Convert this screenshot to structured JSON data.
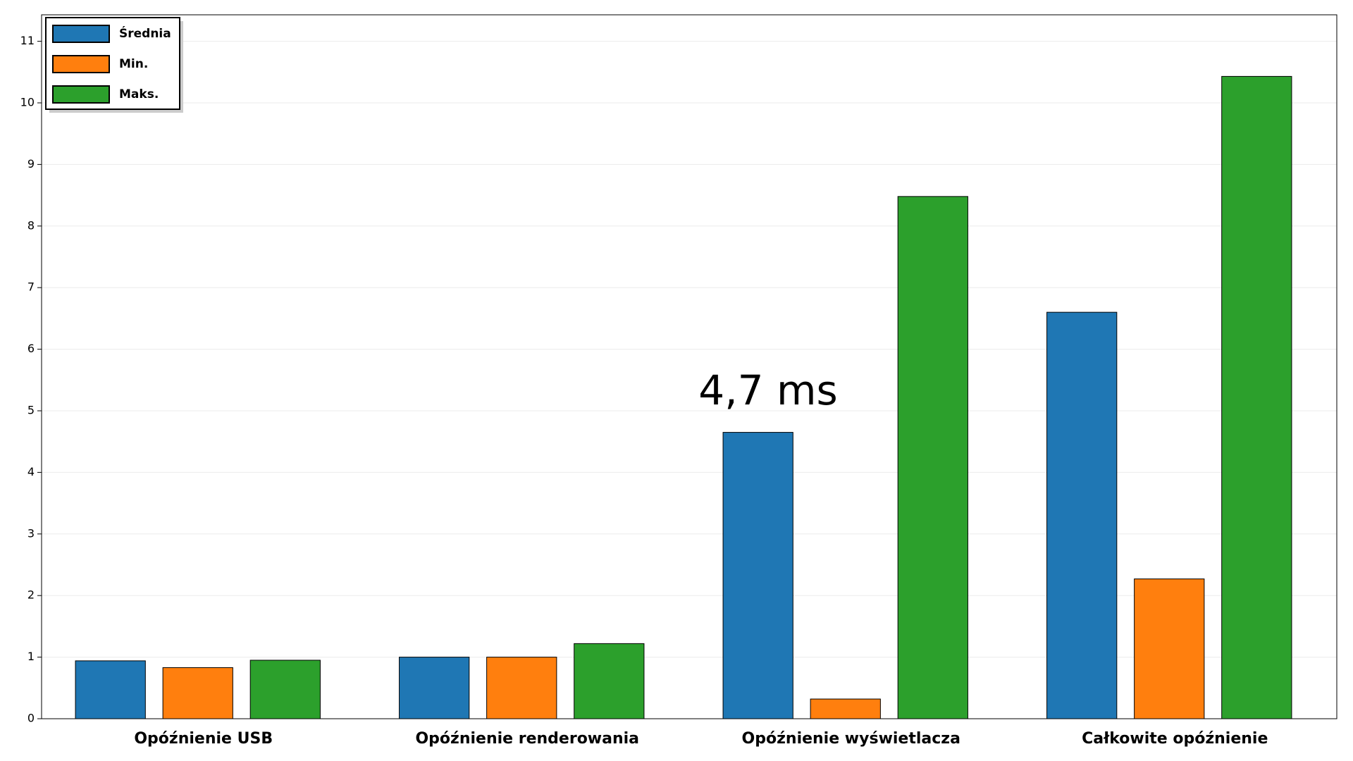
{
  "chart_data": {
    "type": "bar",
    "categories": [
      "Opóźnienie USB",
      "Opóźnienie renderowania",
      "Opóźnienie wyświetlacza",
      "Całkowite opóźnienie"
    ],
    "series": [
      {
        "name": "Średnia",
        "color": "#1f77b4",
        "values": [
          0.94,
          1.0,
          4.65,
          6.6
        ]
      },
      {
        "name": "Min.",
        "color": "#ff7f0e",
        "values": [
          0.83,
          1.0,
          0.32,
          2.27
        ]
      },
      {
        "name": "Maks.",
        "color": "#2ca02c",
        "values": [
          0.95,
          1.22,
          8.48,
          10.43
        ]
      }
    ],
    "annotation": "4,7 ms",
    "ylim": [
      0,
      11.43
    ],
    "yticks": [
      0,
      1,
      2,
      3,
      4,
      5,
      6,
      7,
      8,
      9,
      10,
      11
    ],
    "grid": true,
    "legend": "upper left"
  }
}
